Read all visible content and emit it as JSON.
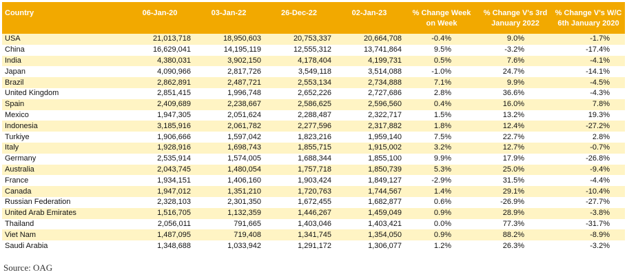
{
  "table": {
    "headers": {
      "country": "Country",
      "c1": "06-Jan-20",
      "c2": "03-Jan-22",
      "c3": "26-Dec-22",
      "c4": "02-Jan-23",
      "c5": "% Change Week on Week",
      "c6": "% Change V's 3rd January 2022",
      "c7": "% Change V's W/C 6th January 2020"
    },
    "rows": [
      [
        "USA",
        "21,013,718",
        "18,950,603",
        "20,753,337",
        "20,664,708",
        "-0.4%",
        "9.0%",
        "-1.7%"
      ],
      [
        "China",
        "16,629,041",
        "14,195,119",
        "12,555,312",
        "13,741,864",
        "9.5%",
        "-3.2%",
        "-17.4%"
      ],
      [
        "India",
        "4,380,031",
        "3,902,150",
        "4,178,404",
        "4,199,731",
        "0.5%",
        "7.6%",
        "-4.1%"
      ],
      [
        "Japan",
        "4,090,966",
        "2,817,726",
        "3,549,118",
        "3,514,088",
        "-1.0%",
        "24.7%",
        "-14.1%"
      ],
      [
        "Brazil",
        "2,862,891",
        "2,487,721",
        "2,553,134",
        "2,734,888",
        "7.1%",
        "9.9%",
        "-4.5%"
      ],
      [
        "United Kingdom",
        "2,851,415",
        "1,996,748",
        "2,652,226",
        "2,727,686",
        "2.8%",
        "36.6%",
        "-4.3%"
      ],
      [
        "Spain",
        "2,409,689",
        "2,238,667",
        "2,586,625",
        "2,596,560",
        "0.4%",
        "16.0%",
        "7.8%"
      ],
      [
        "Mexico",
        "1,947,305",
        "2,051,624",
        "2,288,487",
        "2,322,717",
        "1.5%",
        "13.2%",
        "19.3%"
      ],
      [
        "Indonesia",
        "3,185,916",
        "2,061,782",
        "2,277,596",
        "2,317,882",
        "1.8%",
        "12.4%",
        "-27.2%"
      ],
      [
        "Turkiye",
        "1,906,666",
        "1,597,042",
        "1,823,216",
        "1,959,140",
        "7.5%",
        "22.7%",
        "2.8%"
      ],
      [
        "Italy",
        "1,928,916",
        "1,698,743",
        "1,855,715",
        "1,915,002",
        "3.2%",
        "12.7%",
        "-0.7%"
      ],
      [
        "Germany",
        "2,535,914",
        "1,574,005",
        "1,688,344",
        "1,855,100",
        "9.9%",
        "17.9%",
        "-26.8%"
      ],
      [
        "Australia",
        "2,043,745",
        "1,480,054",
        "1,757,718",
        "1,850,739",
        "5.3%",
        "25.0%",
        "-9.4%"
      ],
      [
        "France",
        "1,934,151",
        "1,406,160",
        "1,903,424",
        "1,849,127",
        "-2.9%",
        "31.5%",
        "-4.4%"
      ],
      [
        "Canada",
        "1,947,012",
        "1,351,210",
        "1,720,763",
        "1,744,567",
        "1.4%",
        "29.1%",
        "-10.4%"
      ],
      [
        "Russian Federation",
        "2,328,103",
        "2,301,350",
        "1,672,455",
        "1,682,877",
        "0.6%",
        "-26.9%",
        "-27.7%"
      ],
      [
        "United Arab Emirates",
        "1,516,705",
        "1,132,359",
        "1,446,267",
        "1,459,049",
        "0.9%",
        "28.9%",
        "-3.8%"
      ],
      [
        "Thailand",
        "2,056,011",
        "791,665",
        "1,403,046",
        "1,403,421",
        "0.0%",
        "77.3%",
        "-31.7%"
      ],
      [
        "Viet Nam",
        "1,487,095",
        "719,408",
        "1,341,745",
        "1,354,050",
        "0.9%",
        "88.2%",
        "-8.9%"
      ],
      [
        "Saudi Arabia",
        "1,348,688",
        "1,033,942",
        "1,291,172",
        "1,306,077",
        "1.2%",
        "26.3%",
        "-3.2%"
      ]
    ]
  },
  "source": "Source: OAG",
  "colors": {
    "header_bg": "#f2a900",
    "stripe": "#fff4c4"
  }
}
